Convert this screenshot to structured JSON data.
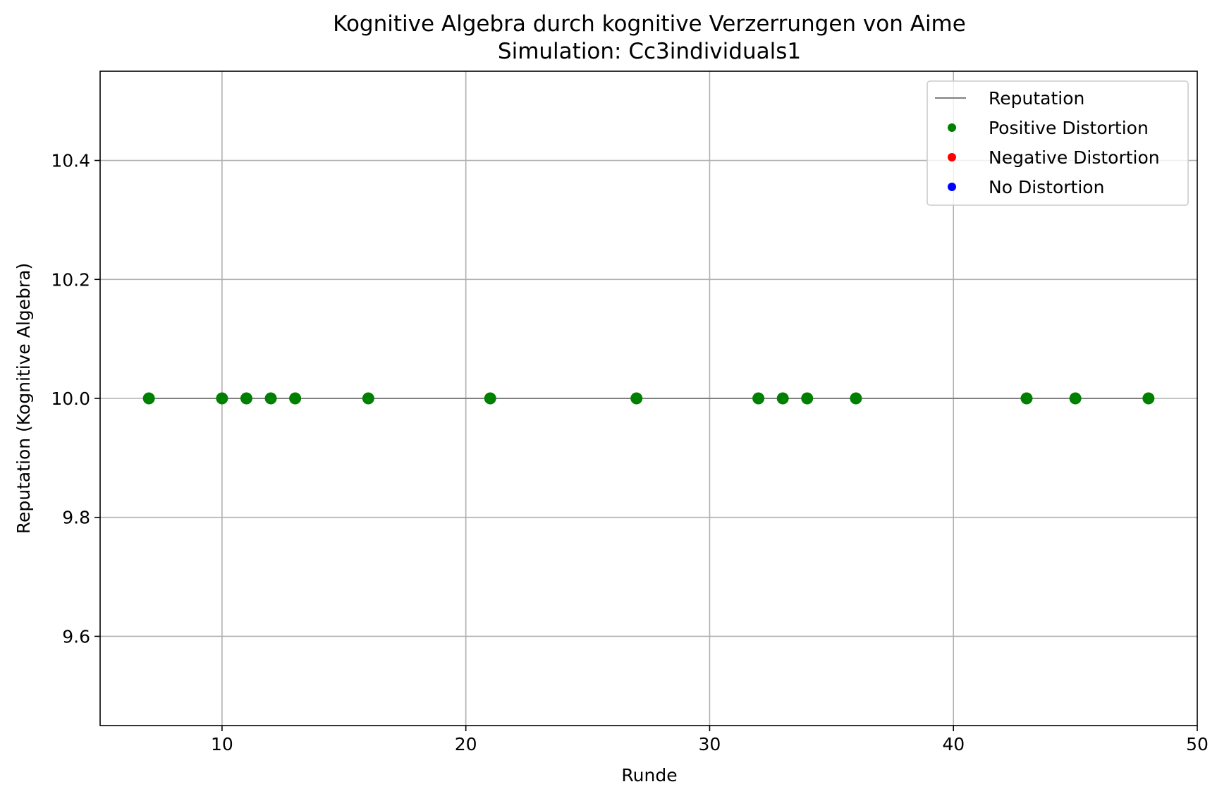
{
  "chart_data": {
    "type": "scatter",
    "title": "Kognitive Algebra durch kognitive Verzerrungen von Aime",
    "subtitle": "Simulation: Cc3individuals1",
    "xlabel": "Runde",
    "ylabel": "Reputation (Kognitive Algebra)",
    "xlim": [
      5,
      50
    ],
    "ylim": [
      9.45,
      10.55
    ],
    "xticks": [
      10,
      20,
      30,
      40,
      50
    ],
    "yticks": [
      9.6,
      9.8,
      10.0,
      10.2,
      10.4
    ],
    "xtick_labels": [
      "10",
      "20",
      "30",
      "40",
      "50"
    ],
    "ytick_labels": [
      "9.6",
      "9.8",
      "10.0",
      "10.2",
      "10.4"
    ],
    "grid": true,
    "legend_position": "top-right",
    "series": [
      {
        "name": "Reputation",
        "kind": "line",
        "color": "#808080",
        "x": [
          7,
          48
        ],
        "y": [
          10.0,
          10.0
        ]
      },
      {
        "name": "Positive Distortion",
        "kind": "points",
        "color": "#008000",
        "x": [
          7,
          10,
          11,
          12,
          13,
          16,
          21,
          27,
          32,
          33,
          34,
          36,
          43,
          45,
          48
        ],
        "y": [
          10.0,
          10.0,
          10.0,
          10.0,
          10.0,
          10.0,
          10.0,
          10.0,
          10.0,
          10.0,
          10.0,
          10.0,
          10.0,
          10.0,
          10.0
        ]
      },
      {
        "name": "Negative Distortion",
        "kind": "points",
        "color": "#ff0000",
        "x": [],
        "y": []
      },
      {
        "name": "No Distortion",
        "kind": "points",
        "color": "#0000ff",
        "x": [],
        "y": []
      }
    ]
  }
}
